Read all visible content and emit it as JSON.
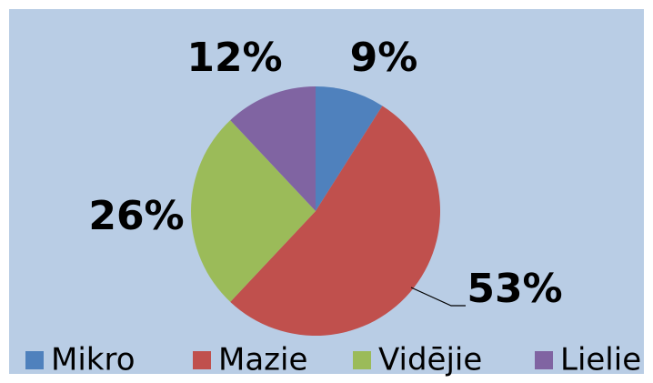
{
  "chart_data": {
    "type": "pie",
    "categories": [
      "Mikro",
      "Mazie",
      "Vidējie",
      "Lielie"
    ],
    "values": [
      9,
      53,
      26,
      12
    ],
    "value_labels": [
      "9%",
      "53%",
      "26%",
      "12%"
    ],
    "colors": [
      "#4f81bd",
      "#c0504d",
      "#9bbb59",
      "#8064a2"
    ],
    "legend": "bottom"
  }
}
